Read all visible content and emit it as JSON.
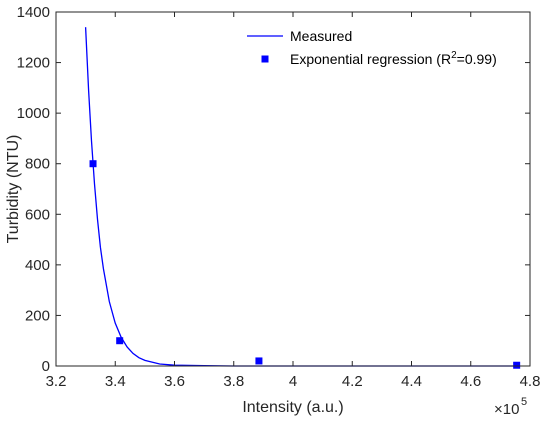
{
  "chart_data": {
    "type": "scatter",
    "xlabel": "Intensity (a.u.)",
    "ylabel": "Turbidity (NTU)",
    "x_multiplier_base": "×10",
    "x_multiplier_exp": "5",
    "xlim": [
      3.2,
      4.8
    ],
    "ylim": [
      0,
      1400
    ],
    "x_ticks": [
      "3.2",
      "3.4",
      "3.6",
      "3.8",
      "4",
      "4.2",
      "4.4",
      "4.6",
      "4.8"
    ],
    "y_ticks": [
      "0",
      "200",
      "400",
      "600",
      "800",
      "1000",
      "1200",
      "1400"
    ],
    "grid": false,
    "legend_position": "top-right",
    "series": [
      {
        "name": "Measured",
        "style": "line",
        "color": "#0000ff",
        "x": [
          3.3,
          3.31,
          3.32,
          3.33,
          3.34,
          3.35,
          3.36,
          3.38,
          3.4,
          3.42,
          3.44,
          3.46,
          3.48,
          3.5,
          3.55,
          3.6,
          3.7,
          3.8,
          4.0,
          4.2,
          4.4,
          4.6,
          4.76
        ],
        "y": [
          1340,
          1090,
          890,
          720,
          580,
          470,
          385,
          255,
          170,
          113,
          75,
          50,
          33,
          22,
          8,
          3,
          1,
          0,
          0,
          0,
          0,
          0,
          0
        ]
      },
      {
        "name_prefix": "Exponential regression (R",
        "name_sup": "2",
        "name_suffix": "=0.99)",
        "style": "marker",
        "color": "#0000ff",
        "x": [
          3.325,
          3.415,
          3.885,
          4.755
        ],
        "y": [
          800,
          100,
          20,
          3
        ]
      }
    ]
  }
}
